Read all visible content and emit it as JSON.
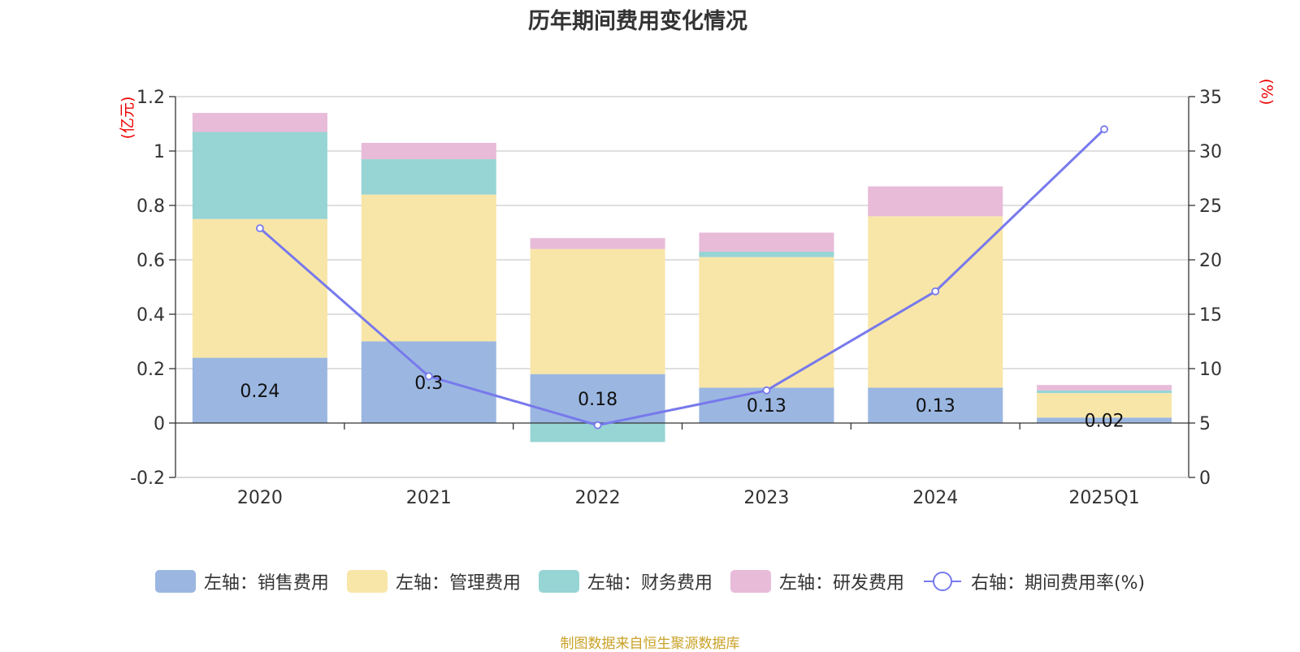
{
  "chart_data": {
    "type": "bar",
    "title": "历年期间费用变化情况",
    "categories": [
      "2020",
      "2021",
      "2022",
      "2023",
      "2024",
      "2025Q1"
    ],
    "left_axis": {
      "unit": "(亿元)",
      "ylim": [
        -0.2,
        1.2
      ],
      "ticks": [
        -0.2,
        0,
        0.2,
        0.4,
        0.6,
        0.8,
        1,
        1.2
      ]
    },
    "right_axis": {
      "unit": "(%)",
      "ylim": [
        0,
        35
      ],
      "ticks": [
        0,
        5,
        10,
        15,
        20,
        25,
        30,
        35
      ]
    },
    "series": [
      {
        "name": "左轴：销售费用",
        "kind": "bar",
        "axis": "left",
        "color": "#9bb7e1",
        "values": [
          0.24,
          0.3,
          0.18,
          0.13,
          0.13,
          0.02
        ],
        "labels": [
          "0.24",
          "0.3",
          "0.18",
          "0.13",
          "0.13",
          "0.02"
        ]
      },
      {
        "name": "左轴：管理费用",
        "kind": "bar",
        "axis": "left",
        "color": "#f8e6a8",
        "values": [
          0.51,
          0.54,
          0.46,
          0.48,
          0.63,
          0.09
        ]
      },
      {
        "name": "左轴：财务费用",
        "kind": "bar",
        "axis": "left",
        "color": "#97d4d4",
        "values": [
          0.32,
          0.13,
          -0.07,
          0.02,
          0.0,
          0.01
        ]
      },
      {
        "name": "左轴：研发费用",
        "kind": "bar",
        "axis": "left",
        "color": "#e8bbd9",
        "values": [
          0.07,
          0.06,
          0.04,
          0.07,
          0.11,
          0.02
        ]
      },
      {
        "name": "右轴：期间费用率(%)",
        "kind": "line",
        "axis": "right",
        "color": "#7779ec",
        "values": [
          22.9,
          9.3,
          4.8,
          8.0,
          17.1,
          32.0
        ]
      }
    ],
    "grid": true,
    "legend": "bottom-center"
  },
  "source_note": "制图数据来自恒生聚源数据库"
}
